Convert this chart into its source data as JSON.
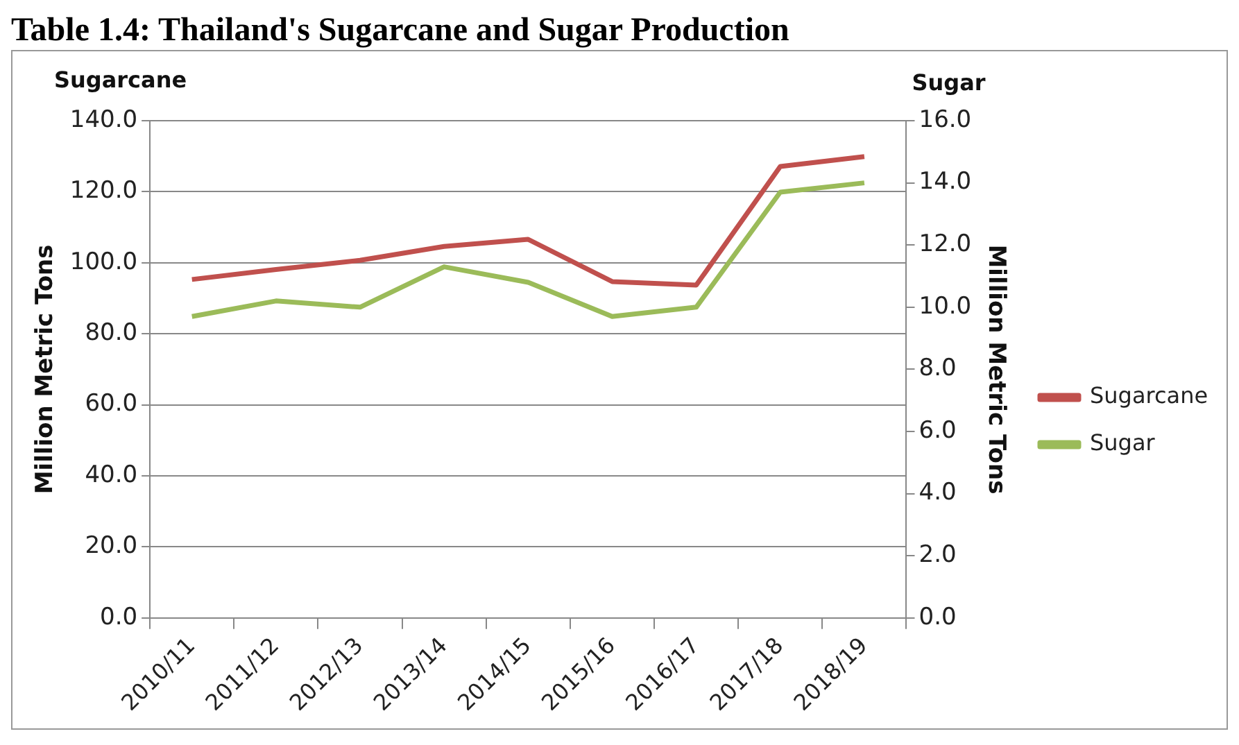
{
  "chart_data": {
    "type": "line",
    "title": "Table 1.4: Thailand's Sugarcane and Sugar Production",
    "ylabel": "Million Metric Tons",
    "y2label": "Million Metric Tons",
    "annotations": [
      "Sugarcane",
      "Sugar"
    ],
    "categories": [
      "2010/11",
      "2011/12",
      "2012/13",
      "2013/14",
      "2014/15",
      "2015/16",
      "2016/17",
      "2017/18",
      "2018/19"
    ],
    "series": [
      {
        "name": "Sugarcane",
        "color": "#c0504d",
        "values": [
          95.3,
          98.1,
          100.7,
          104.6,
          106.6,
          94.7,
          93.7,
          127.1,
          129.9
        ]
      },
      {
        "name": "Sugar",
        "color": "#9bbb59",
        "axis": "y2",
        "values": [
          9.7,
          10.2,
          10.0,
          11.3,
          10.8,
          9.7,
          10.0,
          13.7,
          14.0
        ]
      }
    ],
    "ylim": [
      0,
      140
    ],
    "yticks": [
      {
        "value": 0,
        "label": "0.0"
      },
      {
        "value": 20,
        "label": "20.0"
      },
      {
        "value": 40,
        "label": "40.0"
      },
      {
        "value": 60,
        "label": "60.0"
      },
      {
        "value": 80,
        "label": "80.0"
      },
      {
        "value": 100,
        "label": "100.0"
      },
      {
        "value": 120,
        "label": "120.0"
      },
      {
        "value": 140,
        "label": "140.0"
      }
    ],
    "y2lim": [
      0,
      16
    ],
    "y2ticks": [
      {
        "value": 0,
        "label": "0.0"
      },
      {
        "value": 2,
        "label": "2.0"
      },
      {
        "value": 4,
        "label": "4.0"
      },
      {
        "value": 6,
        "label": "6.0"
      },
      {
        "value": 8,
        "label": "8.0"
      },
      {
        "value": 10,
        "label": "10.0"
      },
      {
        "value": 12,
        "label": "12.0"
      },
      {
        "value": 14,
        "label": "14.0"
      },
      {
        "value": 16,
        "label": "16.0"
      }
    ],
    "grid": "y",
    "legend": "right",
    "marker": "none",
    "line_style": "solid"
  }
}
